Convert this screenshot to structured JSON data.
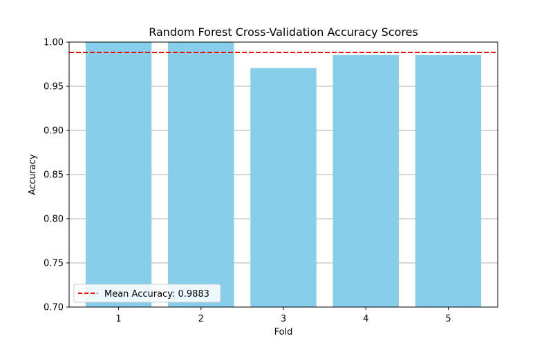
{
  "chart_data": {
    "type": "bar",
    "title": "Random Forest Cross-Validation Accuracy Scores",
    "xlabel": "Fold",
    "ylabel": "Accuracy",
    "categories": [
      "1",
      "2",
      "3",
      "4",
      "5"
    ],
    "values": [
      1.0,
      1.0,
      0.9706,
      0.9853,
      0.9853
    ],
    "ylim": [
      0.7,
      1.0
    ],
    "yticks": [
      "0.70",
      "0.75",
      "0.80",
      "0.85",
      "0.90",
      "0.95",
      "1.00"
    ],
    "grid": "y",
    "bar_color": "#87CEEB",
    "mean_line": {
      "value": 0.9883,
      "color": "#FF0000",
      "style": "dashed"
    },
    "legend": {
      "placement": "lower-left",
      "entries": [
        "Mean Accuracy: 0.9883"
      ]
    }
  }
}
